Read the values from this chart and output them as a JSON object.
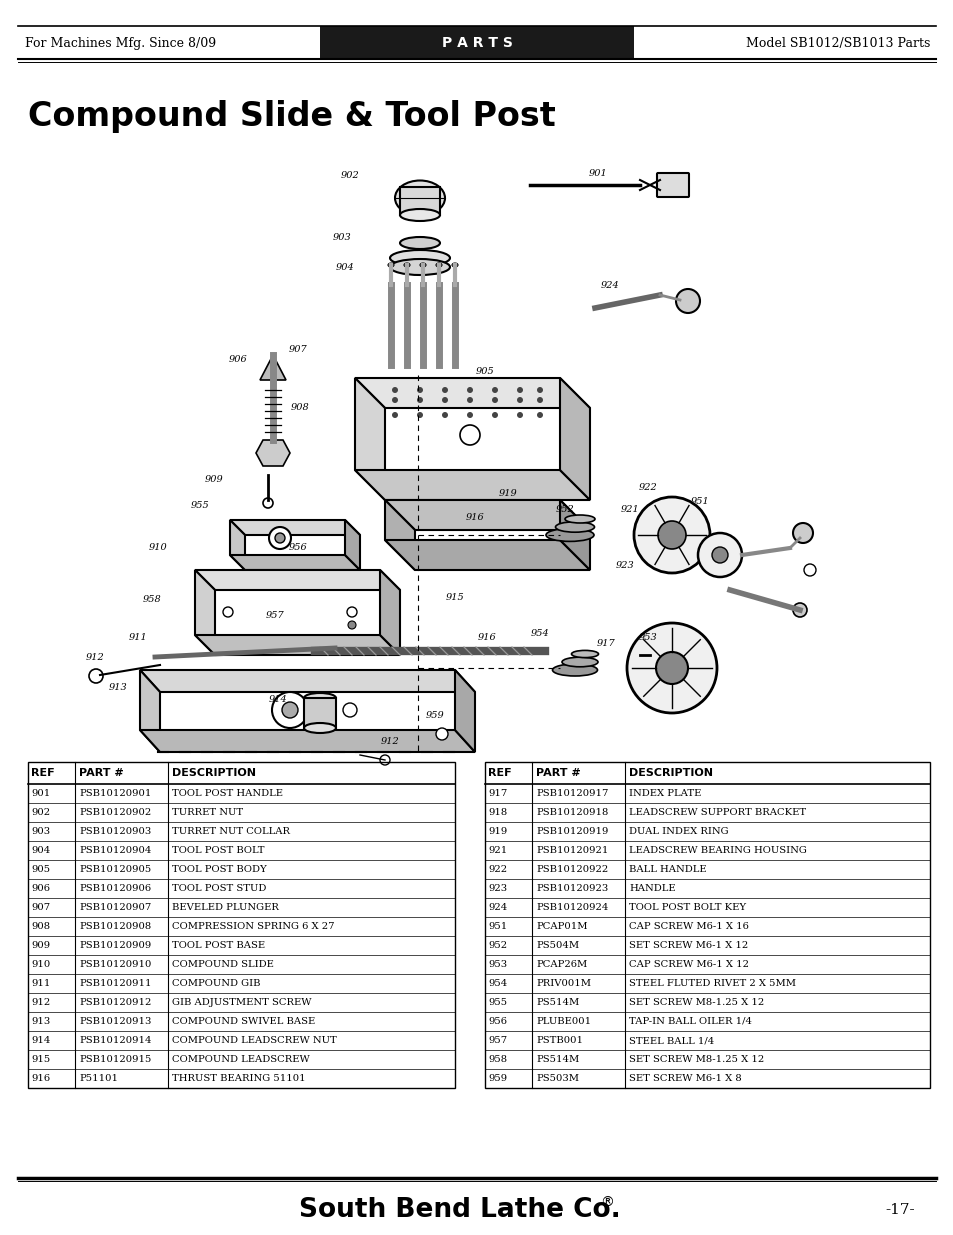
{
  "header_left": "For Machines Mfg. Since 8/09",
  "header_center": "P A R T S",
  "header_right": "Model SB1012/SB1013 Parts",
  "title": "Compound Slide & Tool Post",
  "footer_brand": "South Bend Lathe Co.",
  "footer_page": "-17-",
  "header_bg": "#1a1a1a",
  "bg_color": "#ffffff",
  "table_font_size": 7.2,
  "header_font_size": 9,
  "title_font_size": 24,
  "table_left": [
    [
      "901",
      "PSB10120901",
      "TOOL POST HANDLE"
    ],
    [
      "902",
      "PSB10120902",
      "TURRET NUT"
    ],
    [
      "903",
      "PSB10120903",
      "TURRET NUT COLLAR"
    ],
    [
      "904",
      "PSB10120904",
      "TOOL POST BOLT"
    ],
    [
      "905",
      "PSB10120905",
      "TOOL POST BODY"
    ],
    [
      "906",
      "PSB10120906",
      "TOOL POST STUD"
    ],
    [
      "907",
      "PSB10120907",
      "BEVELED PLUNGER"
    ],
    [
      "908",
      "PSB10120908",
      "COMPRESSION SPRING 6 X 27"
    ],
    [
      "909",
      "PSB10120909",
      "TOOL POST BASE"
    ],
    [
      "910",
      "PSB10120910",
      "COMPOUND SLIDE"
    ],
    [
      "911",
      "PSB10120911",
      "COMPOUND GIB"
    ],
    [
      "912",
      "PSB10120912",
      "GIB ADJUSTMENT SCREW"
    ],
    [
      "913",
      "PSB10120913",
      "COMPOUND SWIVEL BASE"
    ],
    [
      "914",
      "PSB10120914",
      "COMPOUND LEADSCREW NUT"
    ],
    [
      "915",
      "PSB10120915",
      "COMPOUND LEADSCREW"
    ],
    [
      "916",
      "P51101",
      "THRUST BEARING 51101"
    ]
  ],
  "table_right": [
    [
      "917",
      "PSB10120917",
      "INDEX PLATE"
    ],
    [
      "918",
      "PSB10120918",
      "LEADSCREW SUPPORT BRACKET"
    ],
    [
      "919",
      "PSB10120919",
      "DUAL INDEX RING"
    ],
    [
      "921",
      "PSB10120921",
      "LEADSCREW BEARING HOUSING"
    ],
    [
      "922",
      "PSB10120922",
      "BALL HANDLE"
    ],
    [
      "923",
      "PSB10120923",
      "HANDLE"
    ],
    [
      "924",
      "PSB10120924",
      "TOOL POST BOLT KEY"
    ],
    [
      "951",
      "PCAP01M",
      "CAP SCREW M6-1 X 16"
    ],
    [
      "952",
      "PS504M",
      "SET SCREW M6-1 X 12"
    ],
    [
      "953",
      "PCAP26M",
      "CAP SCREW M6-1 X 12"
    ],
    [
      "954",
      "PRIV001M",
      "STEEL FLUTED RIVET 2 X 5MM"
    ],
    [
      "955",
      "PS514M",
      "SET SCREW M8-1.25 X 12"
    ],
    [
      "956",
      "PLUBE001",
      "TAP-IN BALL OILER 1/4"
    ],
    [
      "957",
      "PSTB001",
      "STEEL BALL 1/4"
    ],
    [
      "958",
      "PS514M",
      "SET SCREW M8-1.25 X 12"
    ],
    [
      "959",
      "PS503M",
      "SET SCREW M6-1 X 8"
    ]
  ]
}
